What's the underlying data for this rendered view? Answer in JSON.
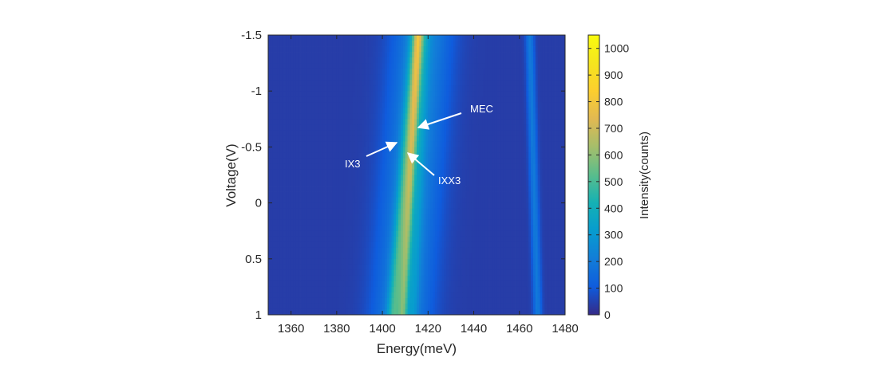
{
  "chart_data": {
    "type": "heatmap",
    "title": "",
    "xlabel": "Energy(meV)",
    "ylabel": "Voltage(V)",
    "colorbar_label": "Intensity(counts)",
    "xlim": [
      1350,
      1480
    ],
    "ylim": [
      -1.5,
      1
    ],
    "y_reversed": true,
    "clim": [
      0,
      1050
    ],
    "colormap": "parula",
    "x_ticks": [
      1360,
      1380,
      1400,
      1420,
      1440,
      1460,
      1480
    ],
    "y_ticks": [
      -1.5,
      -1,
      -0.5,
      0,
      0.5,
      1
    ],
    "x_tick_labels": [
      "1360",
      "1380",
      "1400",
      "1420",
      "1440",
      "1460",
      "1480"
    ],
    "y_tick_labels": [
      "-1.5",
      "-1",
      "-0.5",
      "0",
      "0.5",
      "1"
    ],
    "colorbar_ticks": [
      0,
      100,
      200,
      300,
      400,
      500,
      600,
      700,
      800,
      900,
      1000
    ],
    "colorbar_tick_labels": [
      "0",
      "100",
      "200",
      "300",
      "400",
      "500",
      "600",
      "700",
      "800",
      "900",
      "1000"
    ],
    "background_counts": 40,
    "bands": [
      {
        "name": "broad",
        "peak_energy_at_top": 1417.5,
        "peak_energy_at_bottom": 1408.5,
        "width_meV": 8.5,
        "amplitude": 220
      },
      {
        "name": "IXX3-line",
        "peak_energy_at_top": 1415.0,
        "peak_energy_at_bottom": 1405.0,
        "width_meV": 2.0,
        "amplitude": 270
      },
      {
        "name": "MEC-line",
        "peak_energy_at_top": 1416.0,
        "peak_energy_at_bottom": 1409.0,
        "width_meV": 1.4,
        "amplitude": 290
      },
      {
        "name": "edge-line",
        "peak_energy_at_top": 1419.0,
        "peak_energy_at_bottom": 1413.5,
        "width_meV": 1.5,
        "amplitude": 90
      },
      {
        "name": "right-line",
        "peak_energy_at_top": 1464.5,
        "peak_energy_at_bottom": 1468.0,
        "width_meV": 1.3,
        "amplitude": 160
      }
    ],
    "annotations": [
      {
        "text": "MEC",
        "target": {
          "energy": 1415.5,
          "voltage": -0.68
        }
      },
      {
        "text": "IX3",
        "target": {
          "energy": 1409.0,
          "voltage": -0.53
        }
      },
      {
        "text": "IXX3",
        "target": {
          "energy": 1409.5,
          "voltage": -0.45
        }
      }
    ]
  }
}
